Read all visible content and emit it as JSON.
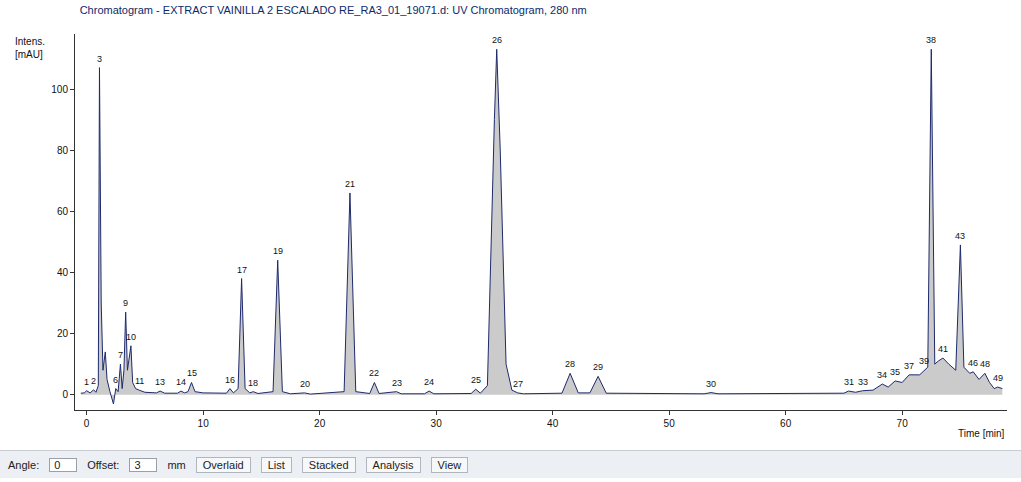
{
  "chart_data": {
    "type": "line",
    "title": "Chromatogram - EXTRACT VAINILLA 2 ESCALADO RE_RA3_01_19071.d: UV Chromatogram, 280 nm",
    "ylabel": "Intens.\n[mAU]",
    "xlabel": "Time [min]",
    "color": "#1f2a6b",
    "grid": false,
    "xlim": [
      -1,
      79
    ],
    "xticks": [
      0,
      10,
      20,
      30,
      40,
      50,
      60,
      70
    ],
    "ylim": [
      -5,
      118
    ],
    "yticks": [
      0,
      20,
      40,
      60,
      80,
      100
    ],
    "x": [
      -0.5,
      -0.2,
      0.0,
      0.3,
      0.6,
      0.8,
      1.0,
      1.1,
      1.25,
      1.4,
      1.6,
      1.75,
      2.0,
      2.3,
      2.5,
      2.7,
      2.9,
      3.05,
      3.2,
      3.35,
      3.5,
      3.65,
      3.8,
      3.95,
      4.2,
      4.5,
      5.0,
      6.0,
      6.3,
      6.7,
      7.8,
      8.1,
      8.4,
      8.7,
      9.0,
      9.3,
      10.0,
      12.0,
      12.3,
      12.6,
      13.0,
      13.3,
      13.6,
      14.0,
      14.3,
      14.7,
      16.0,
      16.4,
      16.8,
      17.5,
      18.7,
      19.2,
      22.1,
      22.6,
      23.1,
      24.3,
      24.7,
      25.1,
      26.6,
      27.0,
      29.0,
      29.4,
      29.8,
      33.0,
      33.4,
      33.8,
      34.4,
      35.0,
      35.2,
      35.5,
      36.0,
      36.5,
      37.0,
      37.5,
      40.8,
      41.5,
      42.2,
      43.2,
      43.9,
      44.6,
      53.0,
      53.6,
      54.2,
      65.0,
      65.4,
      66.0,
      66.6,
      67.5,
      68.3,
      68.8,
      69.4,
      70.0,
      70.6,
      71.5,
      71.9,
      72.2,
      72.5,
      72.8,
      73.1,
      73.5,
      74.0,
      74.6,
      75.0,
      75.3,
      75.8,
      76.1,
      76.6,
      77.1,
      77.5,
      77.9,
      78.2,
      78.6
    ],
    "values": [
      0.5,
      0.6,
      1.3,
      0.6,
      1.6,
      0.8,
      3,
      107,
      30,
      8,
      14,
      5,
      1,
      -3,
      2,
      1,
      10,
      2,
      8,
      27,
      8,
      12,
      16,
      4,
      2,
      1.5,
      0.8,
      0.6,
      1.2,
      0.5,
      0.5,
      1.2,
      0.6,
      1,
      4,
      1,
      0.6,
      0.5,
      2,
      0.6,
      2,
      38,
      2,
      0.6,
      1,
      0.4,
      1,
      44,
      1,
      0.3,
      0.6,
      0.2,
      1,
      66,
      1,
      0.4,
      4,
      0.4,
      1,
      0.3,
      0.3,
      1.2,
      0.3,
      0.4,
      1.8,
      0.5,
      3,
      90,
      113,
      80,
      10,
      1.5,
      0.6,
      0.3,
      0.5,
      7,
      0.6,
      0.6,
      6,
      0.5,
      0.3,
      0.7,
      0.3,
      0.5,
      1.2,
      0.8,
      1.3,
      1.5,
      3.5,
      2.5,
      4.5,
      4,
      6.5,
      6.5,
      8,
      9,
      113,
      10,
      11,
      12,
      10,
      8,
      49,
      9,
      7,
      7.5,
      5,
      7,
      4,
      2,
      2.5,
      2
    ],
    "annotations": [
      {
        "text": "1",
        "x": 0.0,
        "y": 1.3
      },
      {
        "text": "2",
        "x": 0.6,
        "y": 1.6
      },
      {
        "text": "3",
        "x": 1.1,
        "y": 107
      },
      {
        "text": "6",
        "x": 2.5,
        "y": 2
      },
      {
        "text": "7",
        "x": 2.9,
        "y": 10
      },
      {
        "text": "9",
        "x": 3.35,
        "y": 27
      },
      {
        "text": "10",
        "x": 3.8,
        "y": 16
      },
      {
        "text": "11",
        "x": 4.5,
        "y": 1.5
      },
      {
        "text": "13",
        "x": 6.3,
        "y": 1.2
      },
      {
        "text": "14",
        "x": 8.1,
        "y": 1.2
      },
      {
        "text": "15",
        "x": 9.0,
        "y": 4
      },
      {
        "text": "16",
        "x": 12.3,
        "y": 2
      },
      {
        "text": "17",
        "x": 13.3,
        "y": 38
      },
      {
        "text": "18",
        "x": 14.3,
        "y": 1
      },
      {
        "text": "19",
        "x": 16.4,
        "y": 44
      },
      {
        "text": "20",
        "x": 18.7,
        "y": 0.6
      },
      {
        "text": "21",
        "x": 22.6,
        "y": 66
      },
      {
        "text": "22",
        "x": 24.7,
        "y": 4
      },
      {
        "text": "23",
        "x": 26.6,
        "y": 1
      },
      {
        "text": "24",
        "x": 29.4,
        "y": 1.2
      },
      {
        "text": "25",
        "x": 33.4,
        "y": 1.8
      },
      {
        "text": "26",
        "x": 35.2,
        "y": 113
      },
      {
        "text": "27",
        "x": 37.0,
        "y": 0.6
      },
      {
        "text": "28",
        "x": 41.5,
        "y": 7
      },
      {
        "text": "29",
        "x": 43.9,
        "y": 6
      },
      {
        "text": "30",
        "x": 53.6,
        "y": 0.7
      },
      {
        "text": "31",
        "x": 65.4,
        "y": 1.2
      },
      {
        "text": "33",
        "x": 66.6,
        "y": 1.3
      },
      {
        "text": "34",
        "x": 68.3,
        "y": 3.5
      },
      {
        "text": "35",
        "x": 69.4,
        "y": 4.5
      },
      {
        "text": "37",
        "x": 70.6,
        "y": 6.5
      },
      {
        "text": "38",
        "x": 72.5,
        "y": 113
      },
      {
        "text": "39",
        "x": 71.9,
        "y": 8
      },
      {
        "text": "41",
        "x": 73.5,
        "y": 12
      },
      {
        "text": "43",
        "x": 75.0,
        "y": 49
      },
      {
        "text": "46",
        "x": 76.1,
        "y": 7.5
      },
      {
        "text": "48",
        "x": 77.1,
        "y": 7
      },
      {
        "text": "49",
        "x": 78.2,
        "y": 2.5
      }
    ]
  },
  "toolbar": {
    "angle_label": "Angle:",
    "angle": 0,
    "offset_label": "Offset:",
    "offset": 3,
    "offset_unit": "mm",
    "tabs": [
      "Overlaid",
      "List",
      "Stacked",
      "Analysis",
      "View"
    ]
  }
}
